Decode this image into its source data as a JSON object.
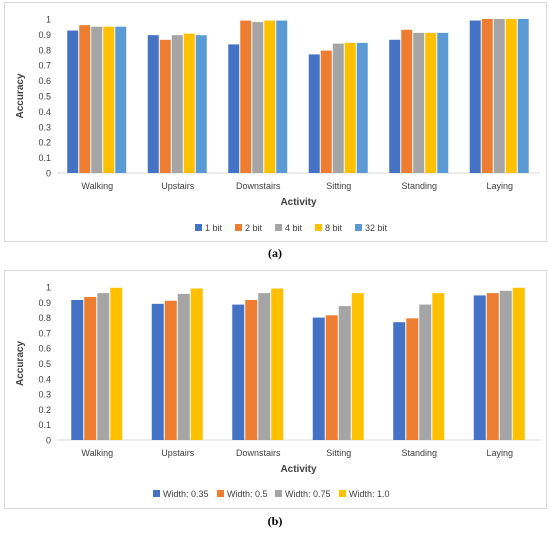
{
  "chart_data": [
    {
      "type": "bar",
      "title": "",
      "xlabel": "Activity",
      "ylabel": "Accuracy",
      "ylim": [
        0,
        1
      ],
      "yticks": [
        "0",
        "0.1",
        "0.2",
        "0.3",
        "0.4",
        "0.5",
        "0.6",
        "0.7",
        "0.8",
        "0.9",
        "1"
      ],
      "grid": false,
      "legend_position": "bottom",
      "categories": [
        "Walking",
        "Upstairs",
        "Downstairs",
        "Sitting",
        "Standing",
        "Laying"
      ],
      "series": [
        {
          "name": "1 bit",
          "color": "#4472C4",
          "values": [
            0.925,
            0.895,
            0.835,
            0.77,
            0.865,
            0.99
          ]
        },
        {
          "name": "2 bit",
          "color": "#ED7D31",
          "values": [
            0.96,
            0.865,
            0.99,
            0.795,
            0.93,
            1.0
          ]
        },
        {
          "name": "4 bit",
          "color": "#A5A5A5",
          "values": [
            0.95,
            0.895,
            0.98,
            0.84,
            0.91,
            1.0
          ]
        },
        {
          "name": "8 bit",
          "color": "#FFC000",
          "values": [
            0.95,
            0.905,
            0.99,
            0.845,
            0.91,
            1.0
          ]
        },
        {
          "name": "32 bit",
          "color": "#5B9BD5",
          "values": [
            0.95,
            0.895,
            0.99,
            0.845,
            0.91,
            1.0
          ]
        }
      ]
    },
    {
      "type": "bar",
      "title": "",
      "xlabel": "Activity",
      "ylabel": "Accuracy",
      "ylim": [
        0,
        1
      ],
      "yticks": [
        "0",
        "0.1",
        "0.2",
        "0.3",
        "0.4",
        "0.5",
        "0.6",
        "0.7",
        "0.8",
        "0.9",
        "1"
      ],
      "grid": false,
      "legend_position": "bottom",
      "categories": [
        "Walking",
        "Upstairs",
        "Downstairs",
        "Sitting",
        "Standing",
        "Laying"
      ],
      "series": [
        {
          "name": "Width: 0.35",
          "color": "#4472C4",
          "values": [
            0.915,
            0.89,
            0.885,
            0.8,
            0.77,
            0.945
          ]
        },
        {
          "name": "Width: 0.5",
          "color": "#ED7D31",
          "values": [
            0.935,
            0.91,
            0.915,
            0.815,
            0.795,
            0.96
          ]
        },
        {
          "name": "Width: 0.75",
          "color": "#A5A5A5",
          "values": [
            0.96,
            0.955,
            0.96,
            0.875,
            0.885,
            0.975
          ]
        },
        {
          "name": "Width: 1.0",
          "color": "#FFC000",
          "values": [
            0.995,
            0.99,
            0.99,
            0.96,
            0.96,
            0.995
          ]
        }
      ]
    }
  ],
  "captions": {
    "a": "(a)",
    "b": "(b)"
  }
}
